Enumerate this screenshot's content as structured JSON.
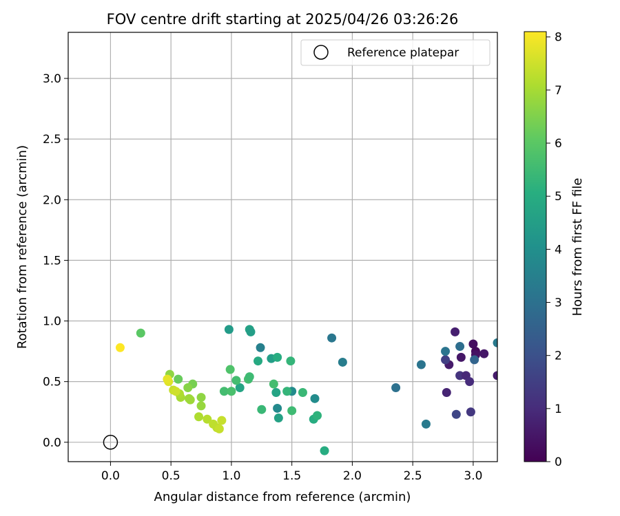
{
  "chart_data": {
    "type": "scatter",
    "title": "FOV centre drift starting at 2025/04/26 03:26:26",
    "xlabel": "Angular distance from reference (arcmin)",
    "ylabel": "Rotation from reference (arcmin)",
    "xlim": [
      -0.35,
      3.2
    ],
    "ylim": [
      -0.16,
      3.38
    ],
    "xticks": [
      0.0,
      0.5,
      1.0,
      1.5,
      2.0,
      2.5,
      3.0
    ],
    "yticks": [
      0.0,
      0.5,
      1.0,
      1.5,
      2.0,
      2.5,
      3.0
    ],
    "xtick_labels": [
      "0.0",
      "0.5",
      "1.0",
      "1.5",
      "2.0",
      "2.5",
      "3.0"
    ],
    "ytick_labels": [
      "0.0",
      "0.5",
      "1.0",
      "1.5",
      "2.0",
      "2.5",
      "3.0"
    ],
    "grid": true,
    "legend": {
      "label": "Reference platepar",
      "placement": "top-right"
    },
    "reference_point": {
      "x": 0.0,
      "y": 0.0
    },
    "colorbar": {
      "label": "Hours from first FF file",
      "colormap": "viridis",
      "range": [
        0,
        8.1
      ],
      "ticks": [
        0,
        1,
        2,
        3,
        4,
        5,
        6,
        7,
        8
      ],
      "tick_labels": [
        "0",
        "1",
        "2",
        "3",
        "4",
        "5",
        "6",
        "7",
        "8"
      ]
    },
    "points": [
      {
        "x": 2.85,
        "y": 0.91,
        "h": 0.7
      },
      {
        "x": 3.0,
        "y": 0.81,
        "h": 0.3
      },
      {
        "x": 3.02,
        "y": 0.75,
        "h": 0.2
      },
      {
        "x": 3.02,
        "y": 0.72,
        "h": 0.4
      },
      {
        "x": 3.09,
        "y": 0.73,
        "h": 0.5
      },
      {
        "x": 2.9,
        "y": 0.7,
        "h": 0.5
      },
      {
        "x": 2.8,
        "y": 0.64,
        "h": 0.6
      },
      {
        "x": 2.89,
        "y": 0.55,
        "h": 1.2
      },
      {
        "x": 2.94,
        "y": 0.55,
        "h": 0.9
      },
      {
        "x": 2.97,
        "y": 0.5,
        "h": 1.0
      },
      {
        "x": 2.78,
        "y": 0.41,
        "h": 0.8
      },
      {
        "x": 2.98,
        "y": 0.25,
        "h": 1.3
      },
      {
        "x": 2.86,
        "y": 0.23,
        "h": 1.7
      },
      {
        "x": 3.2,
        "y": 0.55,
        "h": 0.6
      },
      {
        "x": 2.77,
        "y": 0.68,
        "h": 1.5
      },
      {
        "x": 3.01,
        "y": 0.68,
        "h": 2.6
      },
      {
        "x": 2.89,
        "y": 0.79,
        "h": 2.9
      },
      {
        "x": 2.77,
        "y": 0.75,
        "h": 3.1
      },
      {
        "x": 3.2,
        "y": 0.82,
        "h": 3.3
      },
      {
        "x": 2.57,
        "y": 0.64,
        "h": 3.1
      },
      {
        "x": 2.61,
        "y": 0.15,
        "h": 3.3
      },
      {
        "x": 2.36,
        "y": 0.45,
        "h": 3.0
      },
      {
        "x": 1.83,
        "y": 0.86,
        "h": 3.2
      },
      {
        "x": 1.92,
        "y": 0.66,
        "h": 3.4
      },
      {
        "x": 1.24,
        "y": 0.78,
        "h": 3.5
      },
      {
        "x": 1.38,
        "y": 0.28,
        "h": 3.8
      },
      {
        "x": 1.5,
        "y": 0.42,
        "h": 3.9
      },
      {
        "x": 1.69,
        "y": 0.36,
        "h": 3.9
      },
      {
        "x": 0.98,
        "y": 0.93,
        "h": 4.4
      },
      {
        "x": 1.15,
        "y": 0.93,
        "h": 4.6
      },
      {
        "x": 1.16,
        "y": 0.91,
        "h": 4.5
      },
      {
        "x": 1.33,
        "y": 0.69,
        "h": 4.5
      },
      {
        "x": 1.39,
        "y": 0.2,
        "h": 4.6
      },
      {
        "x": 1.07,
        "y": 0.45,
        "h": 4.7
      },
      {
        "x": 1.37,
        "y": 0.41,
        "h": 4.7
      },
      {
        "x": 1.22,
        "y": 0.67,
        "h": 4.9
      },
      {
        "x": 1.38,
        "y": 0.7,
        "h": 5.0
      },
      {
        "x": 1.49,
        "y": 0.67,
        "h": 5.3
      },
      {
        "x": 1.77,
        "y": -0.07,
        "h": 5.0
      },
      {
        "x": 1.68,
        "y": 0.19,
        "h": 5.0
      },
      {
        "x": 1.71,
        "y": 0.22,
        "h": 5.2
      },
      {
        "x": 1.5,
        "y": 0.26,
        "h": 5.5
      },
      {
        "x": 1.25,
        "y": 0.27,
        "h": 5.4
      },
      {
        "x": 1.46,
        "y": 0.42,
        "h": 5.3
      },
      {
        "x": 1.59,
        "y": 0.41,
        "h": 5.4
      },
      {
        "x": 1.35,
        "y": 0.48,
        "h": 5.6
      },
      {
        "x": 1.04,
        "y": 0.51,
        "h": 5.6
      },
      {
        "x": 1.14,
        "y": 0.52,
        "h": 5.6
      },
      {
        "x": 1.15,
        "y": 0.54,
        "h": 5.5
      },
      {
        "x": 0.94,
        "y": 0.42,
        "h": 5.6
      },
      {
        "x": 1.0,
        "y": 0.42,
        "h": 5.7
      },
      {
        "x": 0.99,
        "y": 0.6,
        "h": 5.8
      },
      {
        "x": 0.25,
        "y": 0.9,
        "h": 6.0
      },
      {
        "x": 0.56,
        "y": 0.52,
        "h": 6.2
      },
      {
        "x": 0.68,
        "y": 0.48,
        "h": 6.4
      },
      {
        "x": 0.64,
        "y": 0.45,
        "h": 6.6
      },
      {
        "x": 0.49,
        "y": 0.56,
        "h": 6.7
      },
      {
        "x": 0.75,
        "y": 0.37,
        "h": 6.7
      },
      {
        "x": 0.75,
        "y": 0.3,
        "h": 6.8
      },
      {
        "x": 0.65,
        "y": 0.36,
        "h": 6.9
      },
      {
        "x": 0.66,
        "y": 0.35,
        "h": 6.9
      },
      {
        "x": 0.58,
        "y": 0.37,
        "h": 7.0
      },
      {
        "x": 0.57,
        "y": 0.4,
        "h": 7.1
      },
      {
        "x": 0.73,
        "y": 0.21,
        "h": 7.1
      },
      {
        "x": 0.8,
        "y": 0.19,
        "h": 7.2
      },
      {
        "x": 0.85,
        "y": 0.15,
        "h": 7.3
      },
      {
        "x": 0.88,
        "y": 0.12,
        "h": 7.3
      },
      {
        "x": 0.9,
        "y": 0.11,
        "h": 7.4
      },
      {
        "x": 0.92,
        "y": 0.18,
        "h": 7.4
      },
      {
        "x": 0.52,
        "y": 0.43,
        "h": 7.4
      },
      {
        "x": 0.54,
        "y": 0.42,
        "h": 7.5
      },
      {
        "x": 0.48,
        "y": 0.5,
        "h": 7.7
      },
      {
        "x": 0.47,
        "y": 0.52,
        "h": 7.8
      },
      {
        "x": 0.08,
        "y": 0.78,
        "h": 8.1
      }
    ]
  }
}
